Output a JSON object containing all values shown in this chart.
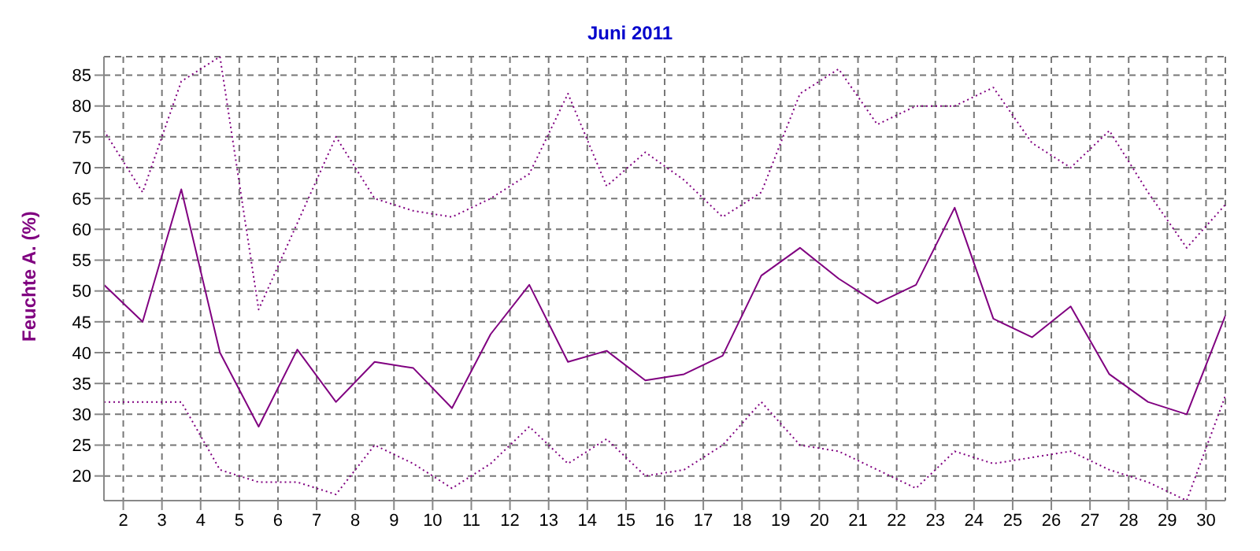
{
  "chart_data": {
    "type": "line",
    "title": "Juni 2011",
    "ylabel": "Feuchte A. (%)",
    "x": [
      1.5,
      2.5,
      3.5,
      4.5,
      5.5,
      6.5,
      7.5,
      8.5,
      9.5,
      10.5,
      11.5,
      12.5,
      13.5,
      14.5,
      15.5,
      16.5,
      17.5,
      18.5,
      19.5,
      20.5,
      21.5,
      22.5,
      23.5,
      24.5,
      25.5,
      26.5,
      27.5,
      28.5,
      29.5,
      30.5
    ],
    "series": [
      {
        "color": "#800080",
        "line_style": "dotted",
        "values": [
          76,
          66,
          84,
          88,
          47,
          61,
          75,
          65,
          63,
          62,
          65,
          69,
          82,
          67,
          72.5,
          68,
          62,
          66,
          82,
          86,
          77,
          80,
          80,
          83,
          74,
          70,
          76,
          66,
          57,
          64
        ]
      },
      {
        "color": "#800080",
        "line_style": "solid",
        "values": [
          51,
          45,
          66.5,
          40,
          28,
          40.5,
          32,
          38.5,
          37.5,
          31,
          43,
          51,
          38.5,
          40.3,
          35.5,
          36.5,
          39.5,
          52.5,
          57,
          52,
          48,
          51,
          63.5,
          45.5,
          42.5,
          47.5,
          36.5,
          32,
          30,
          46
        ]
      },
      {
        "color": "#800080",
        "line_style": "dotted",
        "values": [
          32,
          32,
          32,
          21,
          19,
          19,
          17,
          25,
          22,
          18,
          22,
          28,
          22,
          26,
          20,
          21,
          25,
          32,
          25,
          24,
          21,
          18,
          24,
          22,
          23,
          24,
          21,
          19,
          16,
          33
        ]
      }
    ],
    "xlim": [
      1.5,
      30.5
    ],
    "xticks": [
      2,
      3,
      4,
      5,
      6,
      7,
      8,
      9,
      10,
      11,
      12,
      13,
      14,
      15,
      16,
      17,
      18,
      19,
      20,
      21,
      22,
      23,
      24,
      25,
      26,
      27,
      28,
      29,
      30
    ],
    "ylim": [
      16,
      88
    ],
    "yticks": [
      20,
      25,
      30,
      35,
      40,
      45,
      50,
      55,
      60,
      65,
      70,
      75,
      80,
      85
    ],
    "grid": true,
    "marker": "none"
  }
}
